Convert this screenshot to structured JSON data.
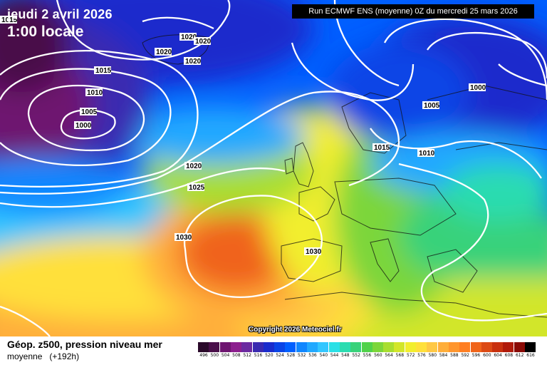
{
  "header": {
    "date": "jeudi 2 avril 2026",
    "time": "1:00 locale",
    "run": "Run ECMWF ENS (moyenne) 0Z du mercredi 25 mars 2026"
  },
  "copyright": "Copyright 2026 Meteociel.fr",
  "footer": {
    "title": "Géop. z500, pression niveau mer",
    "subtitle": "moyenne",
    "range": "(+192h)"
  },
  "contour_labels": [
    "1015",
    "1020",
    "1020",
    "1020",
    "1020",
    "1015",
    "1010",
    "1005",
    "1000",
    "1020",
    "1025",
    "1030",
    "1030",
    "1000",
    "1005",
    "1015",
    "1010"
  ],
  "scale": {
    "values": [
      "496",
      "500",
      "504",
      "508",
      "512",
      "516",
      "520",
      "524",
      "528",
      "532",
      "536",
      "540",
      "544",
      "548",
      "552",
      "556",
      "560",
      "564",
      "568",
      "572",
      "576",
      "580",
      "584",
      "588",
      "592",
      "596",
      "600",
      "604",
      "608",
      "612",
      "616"
    ],
    "colors": [
      "#2b0a2b",
      "#4a0f4a",
      "#6e1570",
      "#8c1f8e",
      "#6b2aa0",
      "#3a2ab0",
      "#1a2ccc",
      "#0a44e6",
      "#005fff",
      "#0f86ff",
      "#21a9ff",
      "#33c6ff",
      "#2ae0e6",
      "#2adcb0",
      "#38d27a",
      "#50d24a",
      "#7cd63a",
      "#a8de30",
      "#d2e62a",
      "#f2ee2e",
      "#ffe03a",
      "#ffc844",
      "#ffae3a",
      "#ff962e",
      "#ff7e22",
      "#f0641a",
      "#dc4a14",
      "#c8300e",
      "#b01a0a",
      "#8a0a06",
      "#000000"
    ]
  }
}
